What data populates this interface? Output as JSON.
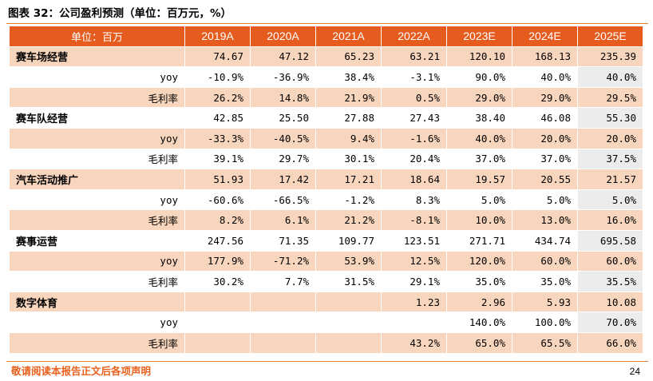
{
  "title": "图表 32：公司盈利预测（单位：百万元，%）",
  "table": {
    "header": [
      "单位：百万",
      "2019A",
      "2020A",
      "2021A",
      "2022A",
      "2023E",
      "2024E",
      "2025E"
    ],
    "rows": [
      {
        "label": "赛车场经营",
        "kind": "segment",
        "values": [
          "74.67",
          "47.12",
          "65.23",
          "63.21",
          "120.10",
          "168.13",
          "235.39"
        ]
      },
      {
        "label": "yoy",
        "kind": "metric",
        "values": [
          "-10.9%",
          "-36.9%",
          "38.4%",
          "-3.1%",
          "90.0%",
          "40.0%",
          "40.0%"
        ]
      },
      {
        "label": "毛利率",
        "kind": "metric",
        "values": [
          "26.2%",
          "14.8%",
          "21.9%",
          "0.5%",
          "29.0%",
          "29.0%",
          "29.5%"
        ]
      },
      {
        "label": "赛车队经营",
        "kind": "segment",
        "values": [
          "42.85",
          "25.50",
          "27.88",
          "27.43",
          "38.40",
          "46.08",
          "55.30"
        ]
      },
      {
        "label": "yoy",
        "kind": "metric",
        "values": [
          "-33.3%",
          "-40.5%",
          "9.4%",
          "-1.6%",
          "40.0%",
          "20.0%",
          "20.0%"
        ]
      },
      {
        "label": "毛利率",
        "kind": "metric",
        "values": [
          "39.1%",
          "29.7%",
          "30.1%",
          "20.4%",
          "37.0%",
          "37.0%",
          "37.5%"
        ]
      },
      {
        "label": "汽车活动推广",
        "kind": "segment",
        "values": [
          "51.93",
          "17.42",
          "17.21",
          "18.64",
          "19.57",
          "20.55",
          "21.57"
        ]
      },
      {
        "label": "yoy",
        "kind": "metric",
        "values": [
          "-60.6%",
          "-66.5%",
          "-1.2%",
          "8.3%",
          "5.0%",
          "5.0%",
          "5.0%"
        ]
      },
      {
        "label": "毛利率",
        "kind": "metric",
        "values": [
          "8.2%",
          "6.1%",
          "21.2%",
          "-8.1%",
          "10.0%",
          "13.0%",
          "16.0%"
        ]
      },
      {
        "label": "赛事运营",
        "kind": "segment",
        "values": [
          "247.56",
          "71.35",
          "109.77",
          "123.51",
          "271.71",
          "434.74",
          "695.58"
        ]
      },
      {
        "label": "yoy",
        "kind": "metric",
        "values": [
          "177.9%",
          "-71.2%",
          "53.9%",
          "12.5%",
          "120.0%",
          "60.0%",
          "60.0%"
        ]
      },
      {
        "label": "毛利率",
        "kind": "metric",
        "values": [
          "30.2%",
          "7.7%",
          "31.5%",
          "29.1%",
          "35.0%",
          "35.0%",
          "35.5%"
        ]
      },
      {
        "label": "数字体育",
        "kind": "segment",
        "values": [
          "",
          "",
          "",
          "1.23",
          "2.96",
          "5.93",
          "10.08"
        ]
      },
      {
        "label": "yoy",
        "kind": "metric",
        "values": [
          "",
          "",
          "",
          "",
          "140.0%",
          "100.0%",
          "70.0%"
        ]
      },
      {
        "label": "毛利率",
        "kind": "metric",
        "values": [
          "",
          "",
          "",
          "43.2%",
          "65.0%",
          "65.5%",
          "66.0%"
        ]
      }
    ]
  },
  "footer": "敬请阅读本报告正文后各项声明",
  "page_number": "24",
  "colors": {
    "header_bg": "#e65c1e",
    "row_shade": "#f8d5bd",
    "last_col_plain": "#ececec",
    "footer_text": "#e8601c"
  }
}
